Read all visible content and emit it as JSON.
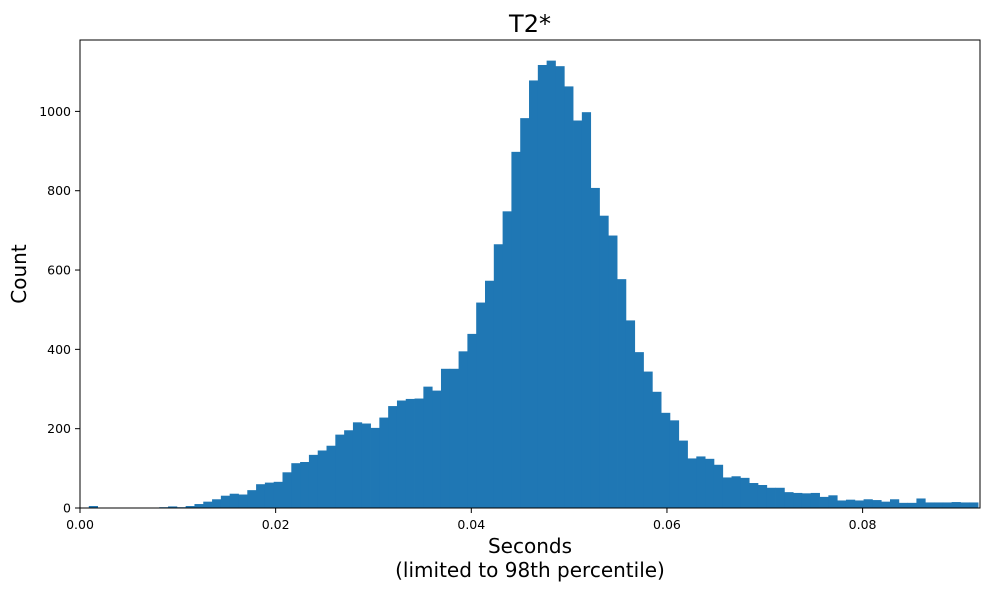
{
  "chart_data": {
    "type": "bar",
    "title": "T2*",
    "xlabel": "Seconds",
    "xlabel_sub": "(limited to 98th percentile)",
    "ylabel": "Count",
    "xlim": [
      0,
      0.092
    ],
    "ylim": [
      0,
      1180
    ],
    "grid": false,
    "legend": "none",
    "bar_color": "#1f77b4",
    "bin_width": 0.0009,
    "x_ticks": [
      0.0,
      0.02,
      0.04,
      0.06,
      0.08
    ],
    "x_tick_labels": [
      "0.00",
      "0.02",
      "0.04",
      "0.06",
      "0.08"
    ],
    "y_ticks": [
      0,
      200,
      400,
      600,
      800,
      1000
    ],
    "y_tick_labels": [
      "0",
      "200",
      "400",
      "600",
      "800",
      "1000"
    ],
    "bin_starts": [
      0.0,
      0.0009,
      0.0018,
      0.0027,
      0.0036,
      0.0045,
      0.0054,
      0.0063,
      0.0072,
      0.0081,
      0.009,
      0.0099,
      0.0108,
      0.0117,
      0.0126,
      0.0135,
      0.0144,
      0.0153,
      0.0162,
      0.0171,
      0.018,
      0.0189,
      0.0198,
      0.0207,
      0.0216,
      0.0225,
      0.0234,
      0.0243,
      0.0252,
      0.0261,
      0.027,
      0.0279,
      0.0288,
      0.0297,
      0.0306,
      0.0315,
      0.0324,
      0.0333,
      0.0342,
      0.0351,
      0.036,
      0.0369,
      0.0378,
      0.0387,
      0.0396,
      0.0405,
      0.0414,
      0.0423,
      0.0432,
      0.0441,
      0.045,
      0.0459,
      0.0468,
      0.0477,
      0.0486,
      0.0495,
      0.0504,
      0.0513,
      0.0522,
      0.0531,
      0.054,
      0.0549,
      0.0558,
      0.0567,
      0.0576,
      0.0585,
      0.0594,
      0.0603,
      0.0612,
      0.0621,
      0.063,
      0.0639,
      0.0648,
      0.0657,
      0.0666,
      0.0675,
      0.0684,
      0.0693,
      0.0702,
      0.0711,
      0.072,
      0.0729,
      0.0738,
      0.0747,
      0.0756,
      0.0765,
      0.0774,
      0.0783,
      0.0792,
      0.0801,
      0.081,
      0.0819,
      0.0828,
      0.0837,
      0.0846,
      0.0855,
      0.0864,
      0.0873,
      0.0882,
      0.0891,
      0.09,
      0.0909
    ],
    "values": [
      0,
      5,
      0,
      0,
      0,
      0,
      0,
      0,
      0,
      2,
      4,
      2,
      5,
      10,
      16,
      22,
      31,
      36,
      34,
      45,
      60,
      64,
      66,
      90,
      113,
      116,
      134,
      145,
      157,
      185,
      196,
      216,
      213,
      202,
      228,
      257,
      271,
      275,
      276,
      306,
      296,
      351,
      351,
      395,
      439,
      518,
      573,
      665,
      748,
      898,
      983,
      1078,
      1117,
      1128,
      1114,
      1063,
      977,
      998,
      807,
      737,
      687,
      577,
      473,
      393,
      344,
      293,
      240,
      221,
      170,
      125,
      130,
      124,
      109,
      77,
      80,
      76,
      63,
      58,
      51,
      51,
      40,
      38,
      37,
      38,
      28,
      32,
      19,
      21,
      19,
      22,
      20,
      16,
      22,
      13,
      13,
      24,
      14,
      14,
      14,
      15,
      14,
      14
    ]
  }
}
